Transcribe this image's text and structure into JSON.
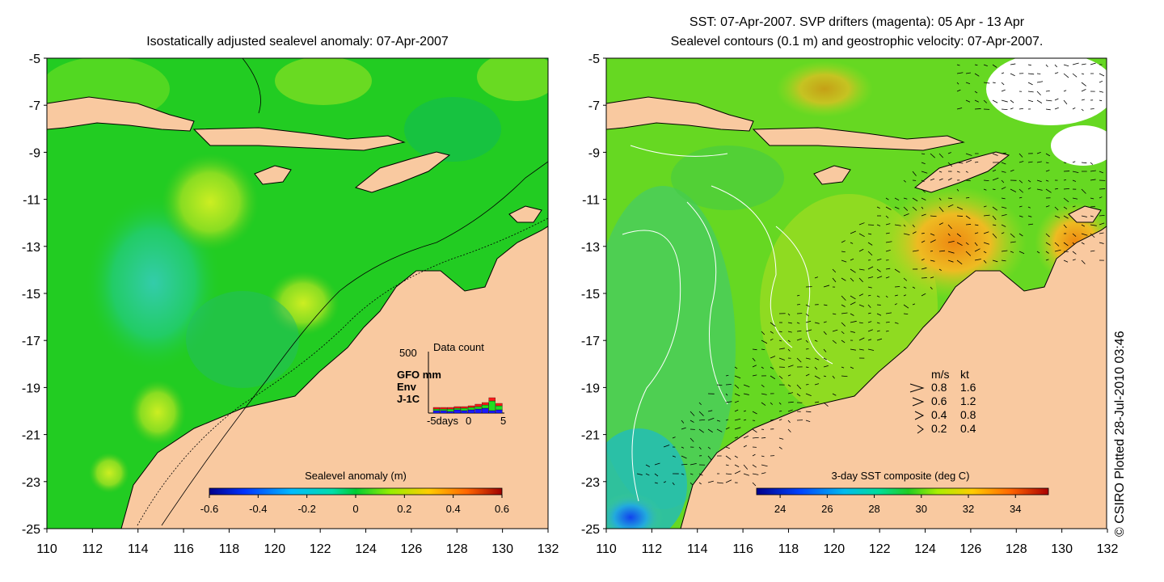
{
  "left_panel": {
    "title": "Isostatically adjusted sealevel anomaly: 07-Apr-2007",
    "y_ticks": [
      "-5",
      "-7",
      "-9",
      "-11",
      "-13",
      "-15",
      "-17",
      "-19",
      "-21",
      "-23",
      "-25"
    ],
    "x_ticks": [
      "110",
      "112",
      "114",
      "116",
      "118",
      "120",
      "122",
      "124",
      "126",
      "128",
      "130",
      "132"
    ],
    "colorbar": {
      "title": "Sealevel anomaly (m)",
      "ticks": [
        "-0.6",
        "-0.4",
        "-0.2",
        "0",
        "0.2",
        "0.4",
        "0.6"
      ],
      "range": [
        -0.6,
        0.6
      ]
    },
    "inset": {
      "title": "Data count",
      "y_max_label": "500",
      "legend": [
        {
          "label": "GFO mm",
          "color": "#ff1a1a"
        },
        {
          "label": "Env",
          "color": "#22dd22"
        },
        {
          "label": "J-1C",
          "color": "#1a1aff"
        }
      ],
      "x_ticks": [
        "-5days",
        "0",
        "5"
      ]
    }
  },
  "right_panel": {
    "title_line1": "SST: 07-Apr-2007. SVP drifters (magenta): 05 Apr - 13 Apr",
    "title_line2": "Sealevel contours (0.1 m) and geostrophic velocity: 07-Apr-2007.",
    "y_ticks": [
      "-5",
      "-7",
      "-9",
      "-11",
      "-13",
      "-15",
      "-17",
      "-19",
      "-21",
      "-23",
      "-25"
    ],
    "x_ticks": [
      "110",
      "112",
      "114",
      "116",
      "118",
      "120",
      "122",
      "124",
      "126",
      "128",
      "130",
      "132"
    ],
    "colorbar": {
      "title": "3-day SST composite (deg C)",
      "ticks": [
        "24",
        "26",
        "28",
        "30",
        "32",
        "34"
      ],
      "range": [
        23,
        35.4
      ]
    },
    "velocity_key": {
      "header_ms": "m/s",
      "header_kt": "kt",
      "rows": [
        {
          "ms": "0.8",
          "kt": "1.6"
        },
        {
          "ms": "0.6",
          "kt": "1.2"
        },
        {
          "ms": "0.4",
          "kt": "0.8"
        },
        {
          "ms": "0.2",
          "kt": "0.4"
        }
      ]
    }
  },
  "credit": "© CSIRO Plotted 28-Jul-2010 03:46",
  "colors": {
    "land": "#f9c9a0",
    "ocean_green": "#22cc22",
    "ocean_light": "#88e81a",
    "ocean_cyan": "#22ccaa"
  }
}
